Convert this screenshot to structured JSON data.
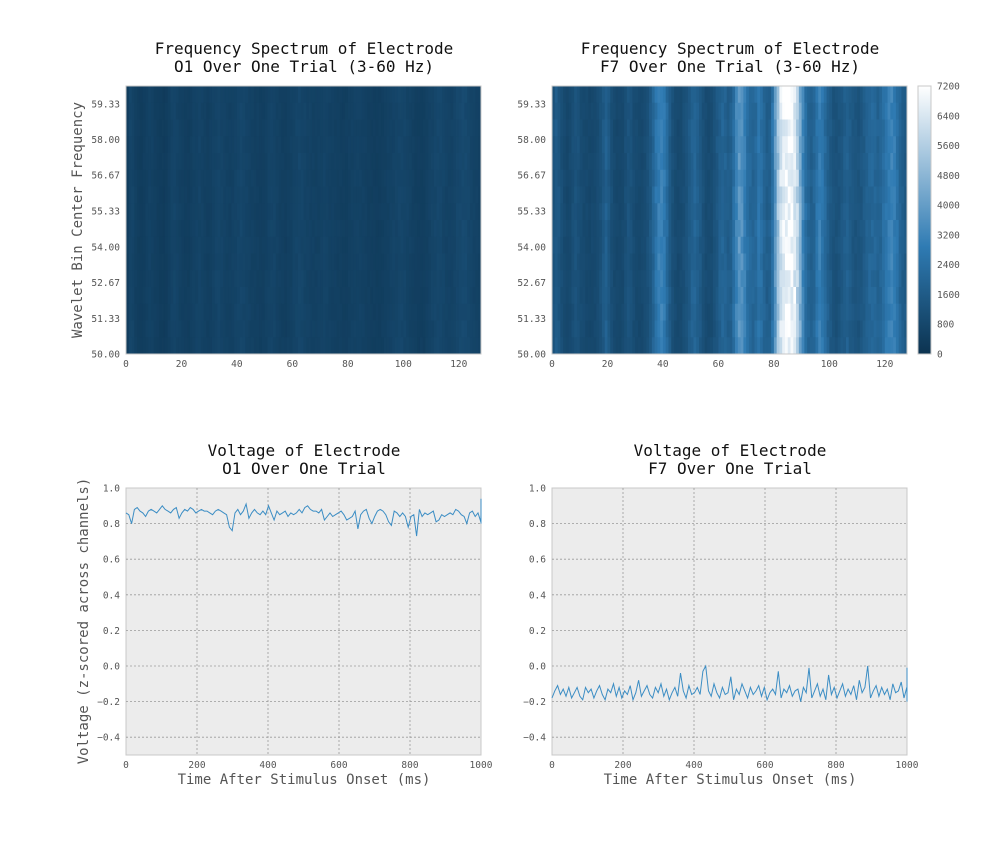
{
  "colors": {
    "low": "#0c3350",
    "mid": "#2f7bb3",
    "high": "#ffffff",
    "line": "#3b8dc4",
    "panel_bg": "#ececec",
    "grid": "#9a9a9a"
  },
  "chart_data": [
    {
      "type": "heatmap",
      "title": "Frequency Spectrum of Electrode\n O1 Over One Trial (3-60 Hz)",
      "xlabel": "",
      "ylabel": "Wavelet Bin Center Frequency",
      "xlim": [
        0,
        128
      ],
      "ylim": [
        50,
        60
      ],
      "x_ticks": [
        "0",
        "20",
        "40",
        "60",
        "80",
        "100",
        "120"
      ],
      "y_ticks": [
        "50.00",
        "51.33",
        "52.67",
        "54.00",
        "55.33",
        "56.67",
        "58.00",
        "59.33"
      ],
      "color_range": [
        0,
        7200
      ],
      "time_bins": 128,
      "freq_bins": 16,
      "column_power": [
        400,
        700,
        650,
        500,
        420,
        380,
        440,
        520,
        600,
        560,
        480,
        420,
        380,
        360,
        400,
        520,
        650,
        700,
        620,
        540,
        500,
        460,
        430,
        480,
        560,
        620,
        660,
        600,
        520,
        480,
        520,
        600,
        680,
        720,
        660,
        600,
        560,
        540,
        580,
        640,
        700,
        760,
        720,
        660,
        600,
        560,
        520,
        500,
        480,
        500,
        560,
        640,
        700,
        660,
        580,
        520,
        480,
        460,
        500,
        560,
        640,
        700,
        760,
        720,
        660,
        600,
        580,
        560,
        540,
        560,
        600,
        640,
        620,
        580,
        540,
        520,
        500,
        480,
        460,
        480,
        520,
        560,
        600,
        620,
        600,
        560,
        520,
        480,
        460,
        440,
        420,
        440,
        480,
        520,
        560,
        600,
        640,
        680,
        720,
        740,
        700,
        640,
        580,
        520,
        480,
        460,
        440,
        460,
        520,
        600,
        680,
        740,
        780,
        760,
        700,
        640,
        600,
        620,
        680,
        760,
        840,
        900,
        860,
        780,
        700,
        640,
        600,
        560
      ]
    },
    {
      "type": "heatmap",
      "title": "Frequency Spectrum of Electrode\n F7 Over One Trial (3-60 Hz)",
      "xlabel": "",
      "ylabel": "",
      "xlim": [
        0,
        128
      ],
      "ylim": [
        50,
        60
      ],
      "x_ticks": [
        "0",
        "20",
        "40",
        "60",
        "80",
        "100",
        "120"
      ],
      "y_ticks": [
        "50.00",
        "51.33",
        "52.67",
        "54.00",
        "55.33",
        "56.67",
        "58.00",
        "59.33"
      ],
      "color_range": [
        0,
        7200
      ],
      "colorbar_ticks": [
        "0",
        "800",
        "1600",
        "2400",
        "3200",
        "4000",
        "4800",
        "5600",
        "6400",
        "7200"
      ],
      "time_bins": 128,
      "freq_bins": 16,
      "column_power": [
        1300,
        1600,
        1400,
        1100,
        900,
        800,
        900,
        1100,
        1300,
        1200,
        1000,
        900,
        850,
        800,
        850,
        900,
        1000,
        1200,
        1500,
        1800,
        1500,
        1100,
        900,
        800,
        800,
        900,
        1100,
        1300,
        1200,
        1000,
        900,
        850,
        900,
        1000,
        1200,
        1500,
        2000,
        2600,
        3000,
        3100,
        2800,
        2200,
        1600,
        1200,
        1000,
        900,
        950,
        1100,
        1300,
        1600,
        1900,
        2000,
        1800,
        1500,
        1200,
        1000,
        950,
        1000,
        1200,
        1500,
        1800,
        2000,
        1900,
        1700,
        1800,
        2400,
        3200,
        3800,
        3600,
        3000,
        2400,
        2100,
        2000,
        2200,
        2600,
        2400,
        2000,
        1700,
        1800,
        2600,
        3800,
        5200,
        6400,
        6900,
        7000,
        7100,
        7000,
        6600,
        5800,
        4500,
        3200,
        2400,
        2000,
        1800,
        2000,
        2600,
        3000,
        2700,
        2200,
        1800,
        1500,
        1300,
        1200,
        1300,
        1500,
        1700,
        1800,
        1600,
        1400,
        1300,
        1300,
        1400,
        1600,
        1800,
        2000,
        2100,
        2000,
        1900,
        2000,
        2300,
        2700,
        3000,
        3100,
        2900,
        2500,
        2000,
        1700,
        1500
      ]
    },
    {
      "type": "line",
      "title": "Voltage of Electrode\n O1 Over One Trial",
      "xlabel": "Time After Stimulus Onset (ms)",
      "ylabel": "Voltage (z-scored across channels)",
      "xlim": [
        0,
        1000
      ],
      "ylim": [
        -0.5,
        1.0
      ],
      "grid": true,
      "x_ticks": [
        "0",
        "200",
        "400",
        "600",
        "800",
        "1000"
      ],
      "y_ticks": [
        "−0.4",
        "−0.2",
        "0.0",
        "0.2",
        "0.4",
        "0.6",
        "0.8",
        "1.0"
      ],
      "x_step": 7.87,
      "y": [
        0.86,
        0.85,
        0.8,
        0.88,
        0.89,
        0.87,
        0.86,
        0.84,
        0.87,
        0.88,
        0.87,
        0.86,
        0.88,
        0.9,
        0.88,
        0.87,
        0.86,
        0.88,
        0.89,
        0.83,
        0.86,
        0.88,
        0.87,
        0.89,
        0.88,
        0.86,
        0.87,
        0.88,
        0.87,
        0.87,
        0.86,
        0.85,
        0.87,
        0.88,
        0.87,
        0.86,
        0.85,
        0.78,
        0.76,
        0.86,
        0.88,
        0.85,
        0.87,
        0.91,
        0.83,
        0.86,
        0.88,
        0.86,
        0.85,
        0.87,
        0.85,
        0.9,
        0.86,
        0.82,
        0.87,
        0.85,
        0.86,
        0.87,
        0.84,
        0.86,
        0.85,
        0.86,
        0.88,
        0.86,
        0.89,
        0.9,
        0.88,
        0.87,
        0.87,
        0.86,
        0.88,
        0.82,
        0.84,
        0.86,
        0.84,
        0.85,
        0.86,
        0.87,
        0.85,
        0.82,
        0.83,
        0.84,
        0.87,
        0.77,
        0.85,
        0.87,
        0.88,
        0.83,
        0.8,
        0.84,
        0.87,
        0.88,
        0.87,
        0.85,
        0.81,
        0.79,
        0.87,
        0.86,
        0.84,
        0.86,
        0.84,
        0.78,
        0.84,
        0.85,
        0.73,
        0.88,
        0.84,
        0.86,
        0.85,
        0.86,
        0.87,
        0.81,
        0.82,
        0.85,
        0.84,
        0.85,
        0.86,
        0.85,
        0.88,
        0.87,
        0.85,
        0.84,
        0.8,
        0.86,
        0.87,
        0.84,
        0.86,
        0.81,
        0.85,
        0.88,
        0.94,
        0.82,
        0.86,
        0.87,
        0.85,
        0.89,
        0.86,
        0.84,
        0.88,
        0.9,
        0.87,
        0.84,
        0.86,
        0.88,
        0.85,
        0.86,
        0.88,
        0.87,
        0.86,
        0.86,
        0.88,
        0.86,
        0.84,
        0.87,
        0.89,
        0.85,
        0.86,
        0.88,
        0.86,
        0.84,
        0.85,
        0.89,
        0.85,
        0.83,
        0.86,
        0.89,
        0.8,
        0.84,
        0.89,
        0.85,
        0.86,
        0.86,
        0.81,
        0.85,
        0.82,
        0.84,
        0.82,
        0.89,
        0.85,
        0.86,
        0.88,
        0.85,
        0.88,
        0.86,
        0.87,
        0.86,
        0.88,
        0.87,
        0.84,
        0.86,
        0.88,
        0.85,
        0.9,
        0.87,
        0.82,
        0.86,
        0.88,
        0.85,
        0.86,
        0.86,
        0.83,
        0.9,
        0.85,
        0.86,
        0.84,
        0.85,
        0.88,
        0.86,
        0.87,
        0.85,
        0.86,
        0.89,
        0.84,
        0.88,
        0.86,
        0.84,
        0.87,
        0.9,
        0.86,
        0.83,
        0.86,
        0.88,
        0.84,
        0.86,
        0.89,
        0.83
      ]
    },
    {
      "type": "line",
      "title": "Voltage of Electrode\n F7 Over One Trial",
      "xlabel": "Time After Stimulus Onset (ms)",
      "ylabel": "",
      "xlim": [
        0,
        1000
      ],
      "ylim": [
        -0.5,
        1.0
      ],
      "grid": true,
      "x_ticks": [
        "0",
        "200",
        "400",
        "600",
        "800",
        "1000"
      ],
      "y_ticks": [
        "−0.4",
        "−0.2",
        "0.0",
        "0.2",
        "0.4",
        "0.6",
        "0.8",
        "1.0"
      ],
      "x_step": 7.87,
      "y": [
        -0.18,
        -0.14,
        -0.11,
        -0.16,
        -0.13,
        -0.17,
        -0.12,
        -0.18,
        -0.15,
        -0.12,
        -0.17,
        -0.19,
        -0.12,
        -0.15,
        -0.13,
        -0.18,
        -0.14,
        -0.11,
        -0.16,
        -0.19,
        -0.13,
        -0.15,
        -0.1,
        -0.17,
        -0.12,
        -0.18,
        -0.14,
        -0.16,
        -0.11,
        -0.19,
        -0.15,
        -0.08,
        -0.17,
        -0.14,
        -0.11,
        -0.16,
        -0.18,
        -0.12,
        -0.15,
        -0.1,
        -0.17,
        -0.13,
        -0.19,
        -0.15,
        -0.12,
        -0.17,
        -0.04,
        -0.14,
        -0.18,
        -0.11,
        -0.16,
        -0.15,
        -0.12,
        -0.16,
        -0.03,
        0.0,
        -0.14,
        -0.17,
        -0.1,
        -0.15,
        -0.18,
        -0.12,
        -0.16,
        -0.15,
        -0.06,
        -0.19,
        -0.13,
        -0.16,
        -0.1,
        -0.14,
        -0.18,
        -0.12,
        -0.16,
        -0.14,
        -0.11,
        -0.17,
        -0.12,
        -0.19,
        -0.15,
        -0.13,
        -0.16,
        -0.03,
        -0.18,
        -0.13,
        -0.15,
        -0.11,
        -0.17,
        -0.14,
        -0.13,
        -0.2,
        -0.12,
        -0.15,
        -0.01,
        -0.18,
        -0.14,
        -0.1,
        -0.17,
        -0.13,
        -0.19,
        -0.05,
        -0.16,
        -0.12,
        -0.18,
        -0.14,
        -0.1,
        -0.17,
        -0.13,
        -0.16,
        -0.11,
        -0.19,
        -0.08,
        -0.15,
        -0.12,
        0.0,
        -0.18,
        -0.14,
        -0.11,
        -0.17,
        -0.12,
        -0.16,
        -0.13,
        -0.19,
        -0.1,
        -0.15,
        -0.14,
        -0.09,
        -0.18,
        -0.12,
        -0.16,
        -0.11,
        -0.14,
        -0.17,
        -0.13,
        -0.01,
        -0.18,
        -0.12,
        -0.15,
        -0.04,
        -0.17,
        -0.13,
        -0.11,
        -0.16,
        -0.1,
        -0.18,
        -0.14,
        -0.12,
        -0.19,
        -0.15,
        -0.11,
        -0.17,
        -0.13,
        -0.16,
        -0.12,
        -0.18,
        -0.14,
        -0.15,
        -0.17,
        -0.19,
        -0.16,
        -0.2,
        -0.15,
        -0.18,
        -0.14,
        -0.17,
        -0.13,
        -0.19,
        -0.16,
        -0.12,
        -0.18,
        -0.15,
        -0.17,
        -0.13,
        -0.19,
        -0.11,
        -0.18,
        -0.15,
        -0.09,
        -0.17,
        -0.14,
        -0.19,
        -0.12,
        -0.16,
        -0.09,
        -0.18,
        -0.15,
        -0.13,
        -0.2,
        -0.16,
        -0.11,
        -0.18,
        -0.14,
        -0.19,
        -0.1,
        -0.17,
        -0.15,
        -0.13,
        -0.19,
        -0.16,
        -0.12,
        -0.18,
        -0.14,
        -0.2,
        -0.15,
        -0.11,
        -0.17,
        -0.14,
        -0.19,
        -0.12,
        -0.16,
        -0.15,
        -0.19,
        -0.2,
        -0.14,
        -0.17,
        -0.12,
        -0.19,
        -0.15,
        -0.1,
        -0.17,
        -0.18,
        -0.14
      ]
    }
  ]
}
